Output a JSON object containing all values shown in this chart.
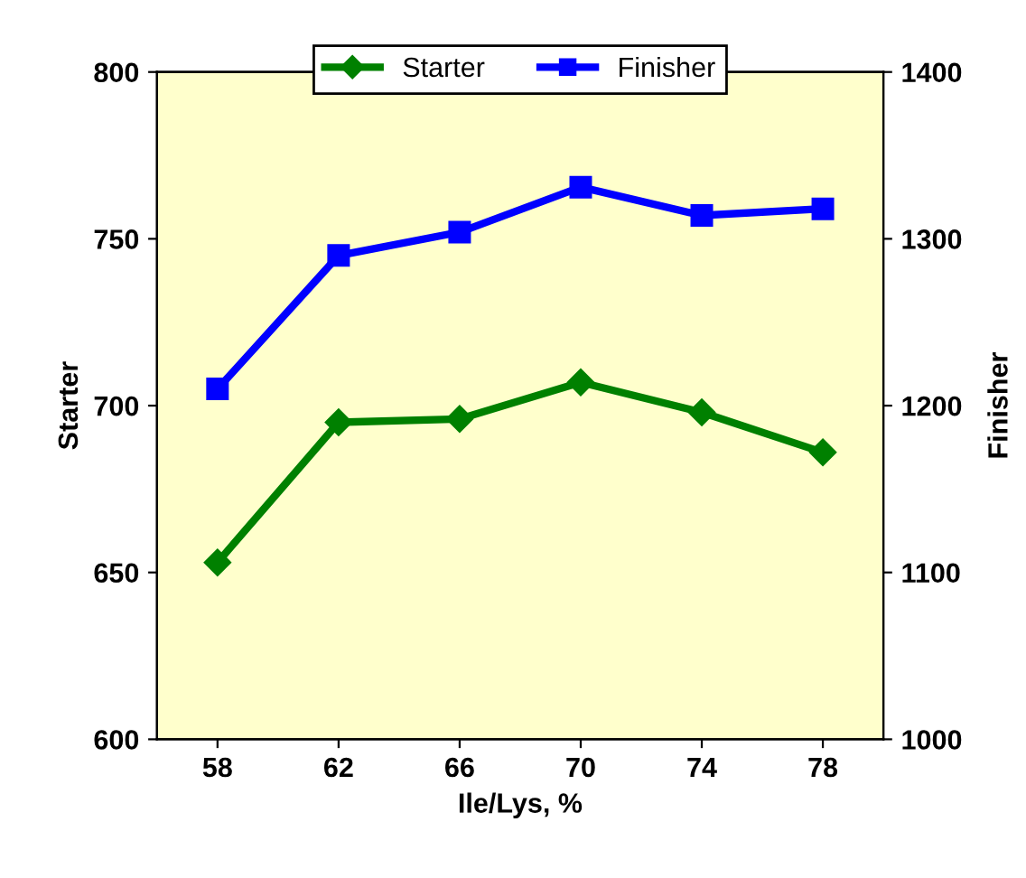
{
  "chart_data": {
    "type": "line",
    "xlabel": "Ile/Lys, %",
    "ylabel": "Starter",
    "y2label": "Finisher",
    "categories": [
      "58",
      "62",
      "66",
      "70",
      "74",
      "78"
    ],
    "series": [
      {
        "name": "Starter",
        "color": "#008000",
        "marker": "diamond",
        "values": [
          653,
          695,
          696,
          707,
          698,
          686
        ]
      },
      {
        "name": "Finisher",
        "color": "#0000ff",
        "marker": "square",
        "axis": "y2",
        "values": [
          1210,
          1290,
          1304,
          1331,
          1314,
          1318
        ]
      }
    ],
    "ylim": [
      600,
      800
    ],
    "yticks": [
      600,
      650,
      700,
      750,
      800
    ],
    "y2lim": [
      1000,
      1400
    ],
    "y2ticks": [
      1000,
      1100,
      1200,
      1300,
      1400
    ],
    "legend": "top",
    "grid": false,
    "line_style": "solid"
  }
}
